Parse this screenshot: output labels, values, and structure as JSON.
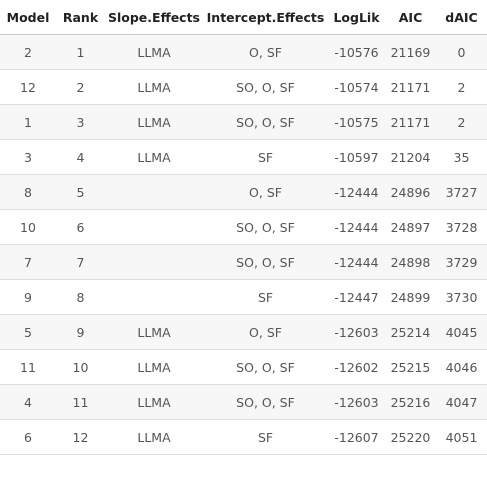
{
  "table": {
    "headers": [
      "Model",
      "Rank",
      "Slope.Effects",
      "Intercept.Effects",
      "LogLik",
      "AIC",
      "dAIC"
    ],
    "rows": [
      [
        "2",
        "1",
        "LLMA",
        "O, SF",
        "-10576",
        "21169",
        "0"
      ],
      [
        "12",
        "2",
        "LLMA",
        "SO, O, SF",
        "-10574",
        "21171",
        "2"
      ],
      [
        "1",
        "3",
        "LLMA",
        "SO, O, SF",
        "-10575",
        "21171",
        "2"
      ],
      [
        "3",
        "4",
        "LLMA",
        "SF",
        "-10597",
        "21204",
        "35"
      ],
      [
        "8",
        "5",
        "",
        "O, SF",
        "-12444",
        "24896",
        "3727"
      ],
      [
        "10",
        "6",
        "",
        "SO, O, SF",
        "-12444",
        "24897",
        "3728"
      ],
      [
        "7",
        "7",
        "",
        "SO, O, SF",
        "-12444",
        "24898",
        "3729"
      ],
      [
        "9",
        "8",
        "",
        "SF",
        "-12447",
        "24899",
        "3730"
      ],
      [
        "5",
        "9",
        "LLMA",
        "O, SF",
        "-12603",
        "25214",
        "4045"
      ],
      [
        "11",
        "10",
        "LLMA",
        "SO, O, SF",
        "-12602",
        "25215",
        "4046"
      ],
      [
        "4",
        "11",
        "LLMA",
        "SO, O, SF",
        "-12603",
        "25216",
        "4047"
      ],
      [
        "6",
        "12",
        "LLMA",
        "SF",
        "-12607",
        "25220",
        "4051"
      ]
    ]
  }
}
